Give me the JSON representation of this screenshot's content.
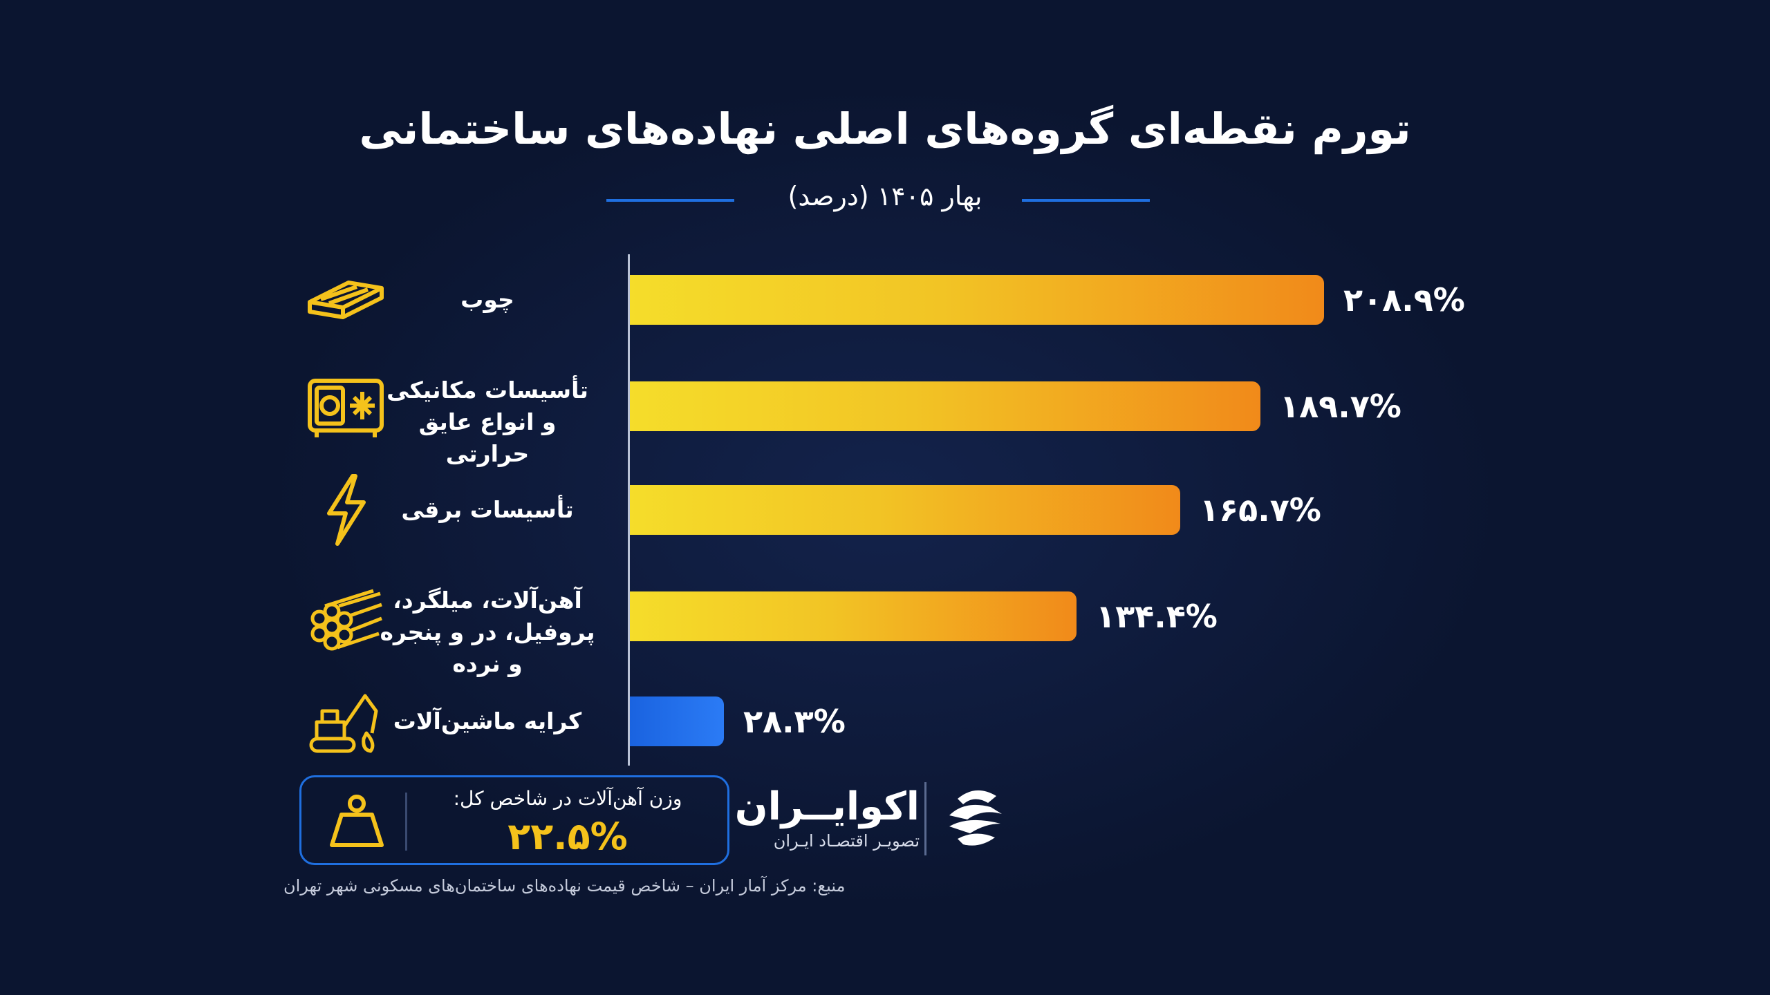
{
  "title": "تورم نقطه‌ای گروه‌های اصلی نهاده‌های ساختمانی",
  "subtitle": "بهار ۱۴۰۵ (درصد)",
  "colors": {
    "background": "#0b1530",
    "bar_warm_start": "#f5dd2a",
    "bar_warm_end": "#f18a1a",
    "bar_cool": "#1a63e0",
    "accent_line": "#1f6fe0",
    "weight_value": "#f5c21b"
  },
  "chart_data": {
    "type": "bar",
    "orientation": "horizontal",
    "title": "تورم نقطه‌ای گروه‌های اصلی نهاده‌های ساختمانی",
    "subtitle": "بهار ۱۴۰۵ (درصد)",
    "categories": [
      "چوب",
      "تأسیسات مکانیکی و انواع عایق حرارتی",
      "تأسیسات برقی",
      "آهن‌آلات، میلگرد، پروفیل، در و پنجره و نرده",
      "کرایه ماشین‌آلات"
    ],
    "values": [
      208.9,
      189.7,
      165.7,
      134.4,
      28.3
    ],
    "value_labels": [
      "۲۰۸.۹%",
      "۱۸۹.۷%",
      "۱۶۵.۷%",
      "۱۳۴.۴%",
      "۲۸.۳%"
    ],
    "bar_colors": [
      "warm",
      "warm",
      "warm",
      "warm",
      "cool"
    ],
    "xlim": [
      0,
      230
    ],
    "grid": false,
    "legend": "none"
  },
  "rows": [
    {
      "label_lines": [
        "چوب"
      ],
      "value_label": "۲۰۸.۹%",
      "icon": "lumber-icon"
    },
    {
      "label_lines": [
        "تأسیسات مکانیکی",
        "و انواع عایق حرارتی"
      ],
      "value_label": "۱۸۹.۷%",
      "icon": "hvac-unit-icon"
    },
    {
      "label_lines": [
        "تأسیسات برقی"
      ],
      "value_label": "۱۶۵.۷%",
      "icon": "lightning-bolt-icon"
    },
    {
      "label_lines": [
        "آهن‌آلات، میلگرد،",
        "پروفیل، در و پنجره و نرده"
      ],
      "value_label": "۱۳۴.۴%",
      "icon": "steel-pipes-icon"
    },
    {
      "label_lines": [
        "کرایه ماشین‌آلات"
      ],
      "value_label": "۲۸.۳%",
      "icon": "excavator-icon"
    }
  ],
  "weight_box": {
    "label": "وزن آهن‌آلات در شاخص کل:",
    "value": "۲۲.۵%",
    "icon": "weight-icon"
  },
  "brand": {
    "name": "اکوایــران",
    "tagline": "تصویـر اقتصـاد ایـران",
    "logo_icon": "ecoiran-logo-icon"
  },
  "source": "منبع: مرکز آمار ایران – شاخص قیمت نهاده‌های ساختمان‌های مسکونی شهر تهران"
}
